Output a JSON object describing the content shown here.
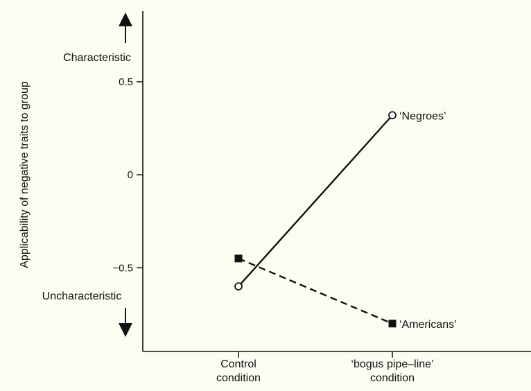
{
  "chart_data": {
    "type": "line",
    "title": "",
    "xlabel": "",
    "ylabel": "Applicability of negative traits to group",
    "categories": [
      "Control condition",
      "‘bogus pipe–line’ condition"
    ],
    "category_lines": [
      [
        "Control",
        "condition"
      ],
      [
        "‘bogus pipe–line’",
        "condition"
      ]
    ],
    "ylim": [
      -0.95,
      0.88
    ],
    "yticks": [
      {
        "value": 0.5,
        "label": "0.5"
      },
      {
        "value": 0,
        "label": "0"
      },
      {
        "value": -0.5,
        "label": "−0.5"
      }
    ],
    "grid": false,
    "legend": "none",
    "y_annotations": {
      "top": "Characteristic",
      "bottom": "Uncharacteristic"
    },
    "series": [
      {
        "name": "‘Negroes’",
        "values": [
          -0.6,
          0.32
        ],
        "marker": "open-circle",
        "line_style": "solid",
        "color": "#111111"
      },
      {
        "name": "‘Americans’",
        "values": [
          -0.45,
          -0.8
        ],
        "marker": "filled-square",
        "line_style": "dashed",
        "color": "#111111"
      }
    ]
  }
}
